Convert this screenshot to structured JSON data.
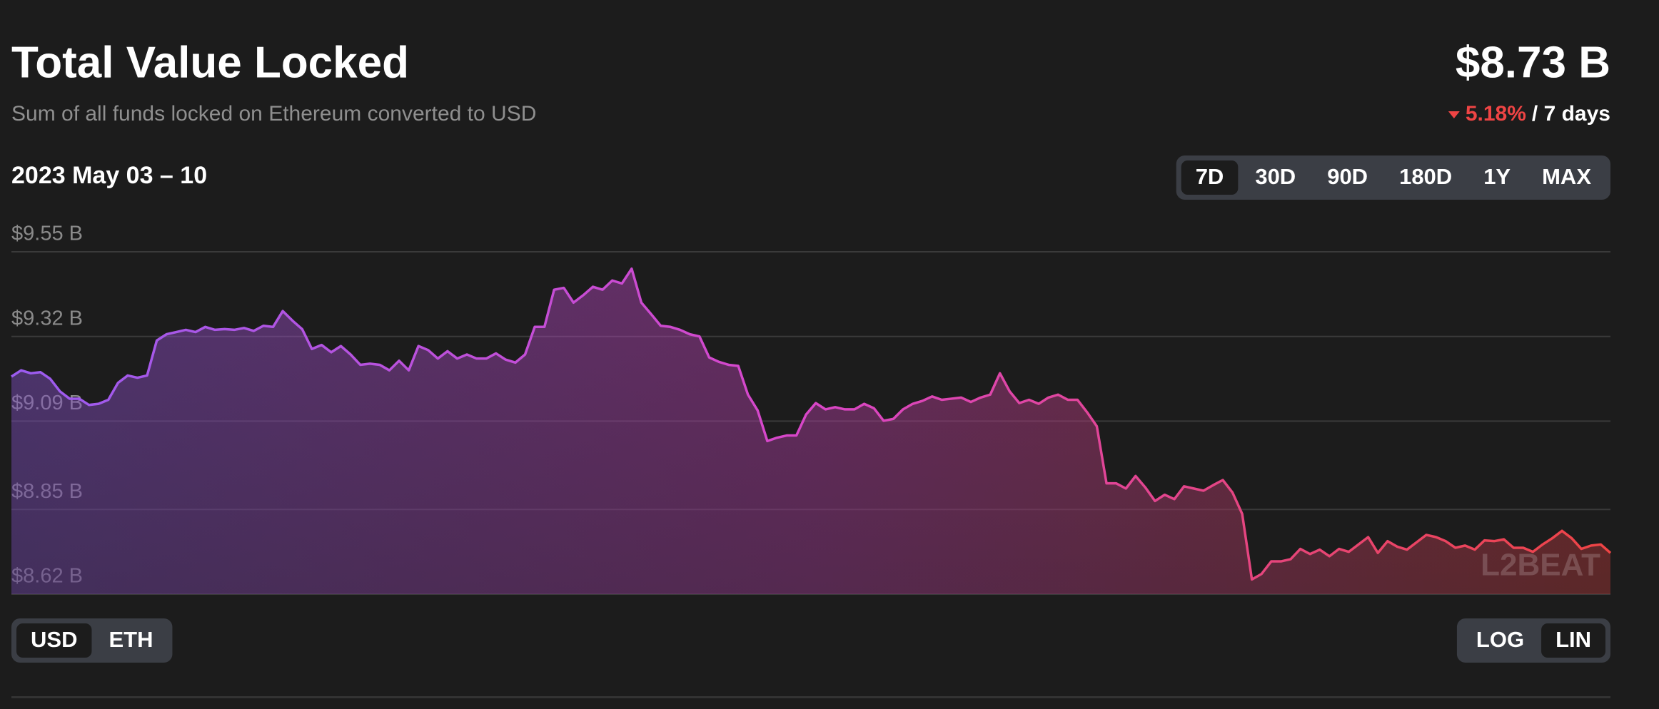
{
  "chart_data": {
    "type": "area",
    "title": "Total Value Locked",
    "subtitle": "Sum of all funds locked on Ethereum converted to USD",
    "value": "$8.73 B",
    "change": "5.18%",
    "change_period": "/ 7 days",
    "change_color": "#ef4444",
    "date_range": "2023 May 03 – 10",
    "range_buttons": [
      "7D",
      "30D",
      "90D",
      "180D",
      "1Y",
      "MAX"
    ],
    "selected_range": 0,
    "unit_buttons": [
      "USD",
      "ETH"
    ],
    "selected_unit": 0,
    "scale_buttons": [
      "LOG",
      "LIN"
    ],
    "log_scale": false,
    "watermark": "L2BEAT",
    "grid": true,
    "ylim": [
      8.62,
      9.55
    ],
    "yticks": [
      {
        "value": 8.62,
        "label": "$8.62 B"
      },
      {
        "value": 8.85,
        "label": "$8.85 B"
      },
      {
        "value": 9.09,
        "label": "$9.09 B"
      },
      {
        "value": 9.32,
        "label": "$9.32 B"
      },
      {
        "value": 9.55,
        "label": "$9.55 B"
      }
    ],
    "series": [
      {
        "colors": [
          "#9b5cf0",
          "#d946c8",
          "#ef4444"
        ],
        "values": [
          9.211,
          9.228,
          9.22,
          9.223,
          9.205,
          9.171,
          9.151,
          9.151,
          9.134,
          9.137,
          9.148,
          9.194,
          9.214,
          9.208,
          9.214,
          9.309,
          9.326,
          9.332,
          9.338,
          9.332,
          9.346,
          9.338,
          9.34,
          9.338,
          9.343,
          9.335,
          9.349,
          9.346,
          9.389,
          9.363,
          9.34,
          9.286,
          9.297,
          9.277,
          9.294,
          9.271,
          9.243,
          9.246,
          9.243,
          9.228,
          9.254,
          9.228,
          9.294,
          9.283,
          9.26,
          9.28,
          9.26,
          9.271,
          9.26,
          9.26,
          9.274,
          9.257,
          9.249,
          9.271,
          9.346,
          9.346,
          9.447,
          9.452,
          9.412,
          9.432,
          9.455,
          9.447,
          9.472,
          9.464,
          9.504,
          9.412,
          9.381,
          9.349,
          9.346,
          9.338,
          9.326,
          9.32,
          9.263,
          9.251,
          9.243,
          9.24,
          9.162,
          9.119,
          9.036,
          9.045,
          9.051,
          9.051,
          9.108,
          9.139,
          9.122,
          9.128,
          9.122,
          9.122,
          9.137,
          9.125,
          9.091,
          9.096,
          9.122,
          9.137,
          9.145,
          9.157,
          9.148,
          9.151,
          9.154,
          9.142,
          9.154,
          9.162,
          9.22,
          9.171,
          9.139,
          9.148,
          9.137,
          9.154,
          9.162,
          9.148,
          9.148,
          9.114,
          9.076,
          8.921,
          8.921,
          8.907,
          8.941,
          8.91,
          8.873,
          8.89,
          8.878,
          8.913,
          8.907,
          8.901,
          8.916,
          8.93,
          8.896,
          8.838,
          8.66,
          8.675,
          8.709,
          8.709,
          8.715,
          8.743,
          8.729,
          8.741,
          8.723,
          8.743,
          8.735,
          8.755,
          8.775,
          8.732,
          8.764,
          8.749,
          8.741,
          8.761,
          8.781,
          8.775,
          8.764,
          8.746,
          8.752,
          8.741,
          8.766,
          8.764,
          8.769,
          8.746,
          8.746,
          8.735,
          8.755,
          8.772,
          8.792,
          8.772,
          8.743,
          8.752,
          8.755,
          8.732
        ]
      }
    ]
  }
}
